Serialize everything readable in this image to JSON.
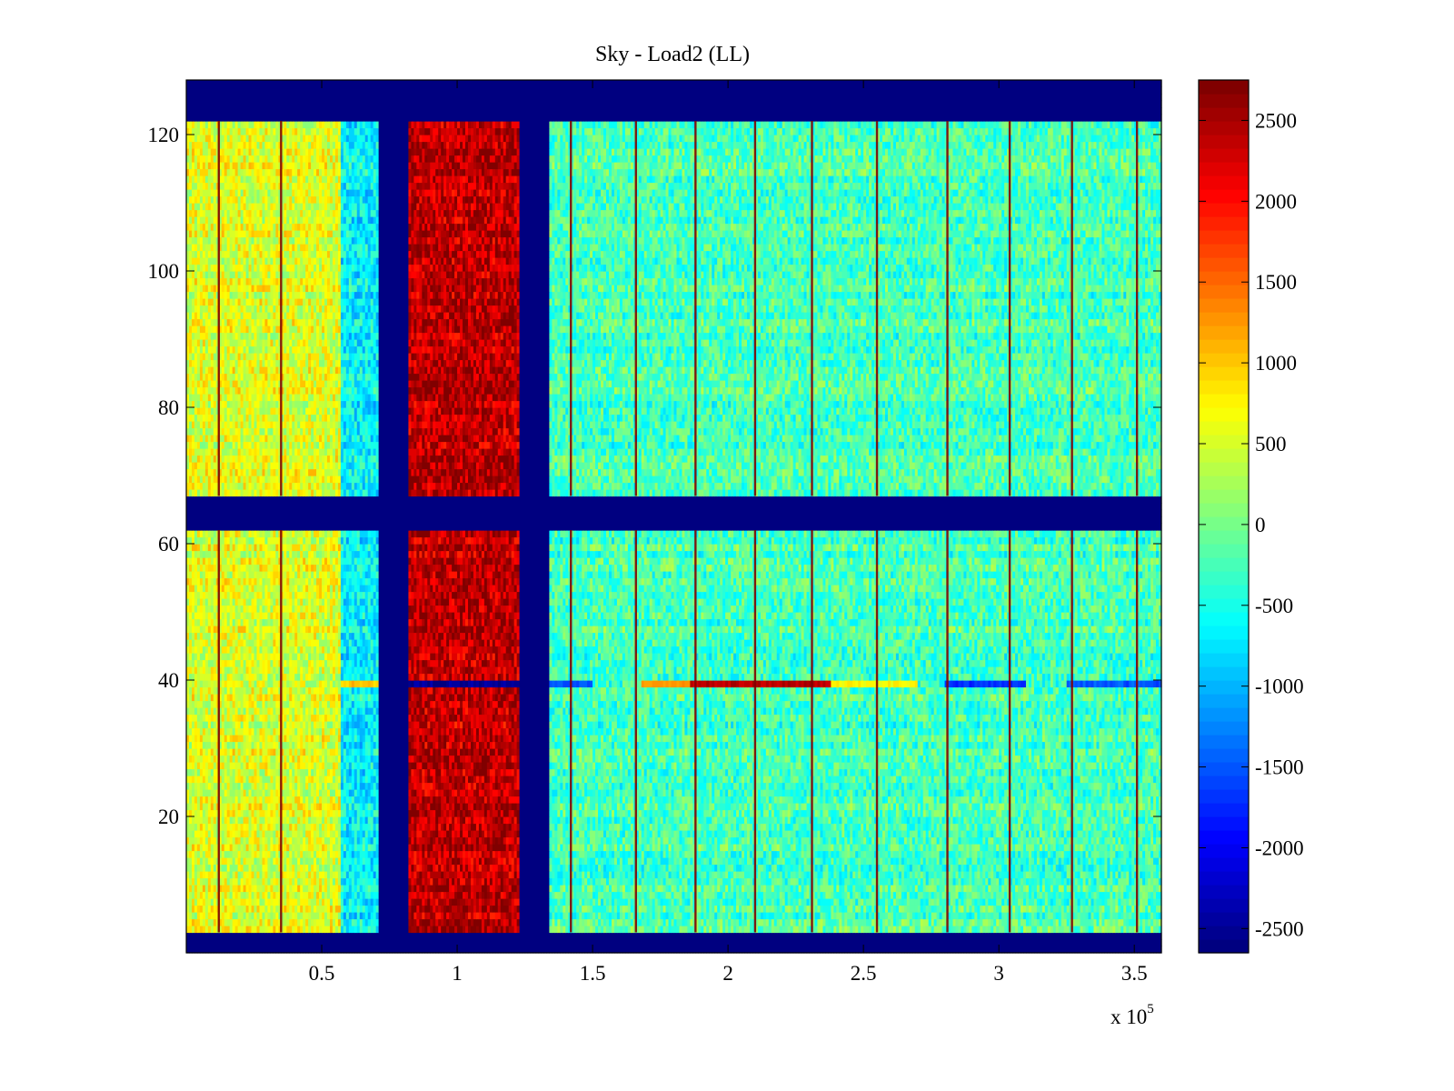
{
  "chart_data": {
    "type": "heatmap",
    "title": "Sky - Load2 (LL)",
    "xlabel": "",
    "ylabel": "",
    "x_multiplier_label": "x 10",
    "x_multiplier_exponent": "5",
    "xlim": [
      0.0,
      3.6
    ],
    "ylim": [
      0,
      128
    ],
    "x_ticks": [
      0.5,
      1.0,
      1.5,
      2.0,
      2.5,
      3.0,
      3.5
    ],
    "x_tick_labels": [
      "0.5",
      "1",
      "1.5",
      "2",
      "2.5",
      "3",
      "3.5"
    ],
    "y_ticks": [
      20,
      40,
      60,
      80,
      100,
      120
    ],
    "y_tick_labels": [
      "20",
      "40",
      "60",
      "80",
      "100",
      "120"
    ],
    "colorbar": {
      "range": [
        -2650,
        2750
      ],
      "ticks": [
        2500,
        2000,
        1500,
        1000,
        500,
        0,
        -500,
        -1000,
        -1500,
        -2000,
        -2500
      ],
      "tick_labels": [
        "2500",
        "2000",
        "1500",
        "1000",
        "500",
        "0",
        "-500",
        "-1000",
        "-1500",
        "-2000",
        "-2500"
      ],
      "colormap": "jet",
      "levels": 64
    },
    "masked_rows": [
      [
        0,
        3
      ],
      [
        62,
        67
      ],
      [
        122,
        128
      ]
    ],
    "masked_columns": [
      [
        0.71,
        0.82
      ],
      [
        1.23,
        1.34
      ]
    ],
    "column_regions": [
      {
        "x": [
          0.0,
          0.57
        ],
        "mean": 550
      },
      {
        "x": [
          0.57,
          0.71
        ],
        "mean": -650
      },
      {
        "x": [
          0.82,
          1.23
        ],
        "mean": 2400
      },
      {
        "x": [
          1.34,
          3.6
        ],
        "mean": -250
      }
    ],
    "stripe_columns_x": [
      0.12,
      0.35,
      1.42,
      1.66,
      1.88,
      2.1,
      2.31,
      2.55,
      2.81,
      3.04,
      3.27,
      3.51
    ],
    "row_39_segments": [
      {
        "x": [
          0.57,
          0.71
        ],
        "value": 1000
      },
      {
        "x": [
          0.82,
          1.23
        ],
        "value": -2500
      },
      {
        "x": [
          1.34,
          1.5
        ],
        "value": -1500
      },
      {
        "x": [
          1.68,
          1.86
        ],
        "value": 1300
      },
      {
        "x": [
          1.86,
          2.38
        ],
        "value": 2400
      },
      {
        "x": [
          2.38,
          2.7
        ],
        "value": 700
      },
      {
        "x": [
          2.8,
          3.1
        ],
        "value": -1700
      },
      {
        "x": [
          3.25,
          3.6
        ],
        "value": -1500
      }
    ]
  }
}
